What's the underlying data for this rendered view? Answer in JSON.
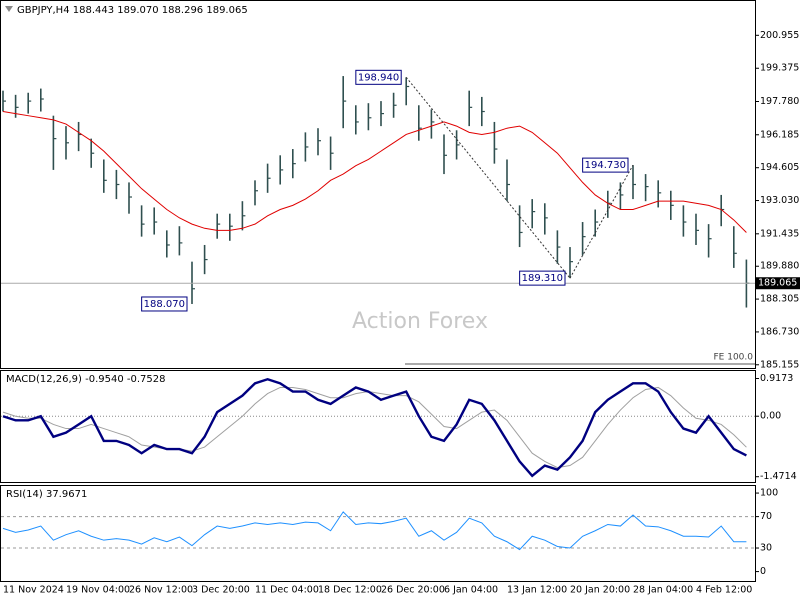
{
  "chart_data": [
    {
      "type": "ohlc",
      "title": "GBPJPY,H4  188.443 189.070 188.296 189.065",
      "watermark": "Action Forex",
      "fe_label": "FE 100.0",
      "categories": [
        "11 Nov 2024",
        null,
        null,
        null,
        null,
        "19 Nov 04:00",
        null,
        null,
        null,
        null,
        "26 Nov 12:00",
        null,
        null,
        null,
        null,
        "3 Dec 20:00",
        null,
        null,
        null,
        null,
        "11 Dec 04:00",
        null,
        null,
        null,
        null,
        "18 Dec 12:00",
        null,
        null,
        null,
        null,
        "26 Dec 20:00",
        null,
        null,
        null,
        null,
        "6 Jan 04:00",
        null,
        null,
        null,
        null,
        "13 Jan 12:00",
        null,
        null,
        null,
        null,
        "20 Jan 20:00",
        null,
        null,
        null,
        null,
        "28 Jan 04:00",
        null,
        null,
        null,
        null,
        "4 Feb 12:00",
        null,
        null,
        null,
        null
      ],
      "color": "#2f4f4f",
      "high": [
        198.3,
        198.1,
        198.2,
        198.4,
        197.1,
        196.6,
        196.8,
        196.0,
        195.0,
        194.5,
        193.9,
        192.8,
        192.7,
        191.6,
        191.8,
        190.1,
        190.9,
        192.4,
        192.4,
        193.0,
        194.0,
        194.8,
        195.2,
        195.5,
        196.3,
        196.5,
        196.1,
        199.0,
        197.6,
        197.7,
        197.8,
        198.2,
        198.94,
        197.6,
        197.4,
        196.2,
        196.4,
        198.3,
        198.0,
        196.8,
        195.0,
        192.8,
        193.1,
        192.9,
        191.6,
        190.8,
        192.0,
        192.6,
        193.5,
        193.9,
        194.73,
        194.3,
        194.0,
        193.5,
        192.8,
        192.4,
        191.9,
        193.3,
        191.8,
        190.2
      ],
      "low": [
        197.3,
        197.0,
        197.2,
        197.3,
        194.5,
        195.0,
        195.4,
        194.6,
        193.4,
        193.1,
        192.4,
        191.3,
        191.4,
        190.3,
        190.4,
        188.07,
        189.5,
        191.2,
        191.1,
        191.6,
        192.8,
        193.4,
        193.8,
        194.1,
        194.9,
        195.2,
        194.5,
        196.5,
        196.2,
        196.4,
        196.6,
        197.0,
        197.6,
        195.9,
        196.0,
        194.3,
        195.0,
        196.6,
        196.6,
        194.8,
        193.0,
        190.8,
        191.7,
        191.4,
        190.0,
        189.31,
        190.4,
        191.3,
        192.2,
        192.6,
        193.1,
        193.0,
        192.7,
        192.1,
        191.3,
        190.9,
        190.3,
        191.8,
        189.8,
        187.9
      ],
      "close": [
        197.8,
        197.5,
        197.8,
        197.9,
        196.0,
        195.8,
        196.2,
        195.3,
        194.0,
        193.8,
        193.2,
        191.9,
        192.0,
        190.9,
        191.0,
        188.8,
        190.2,
        191.9,
        191.8,
        192.3,
        193.5,
        194.1,
        194.5,
        194.8,
        195.6,
        195.9,
        195.3,
        197.8,
        196.8,
        197.0,
        197.2,
        197.6,
        198.5,
        196.5,
        196.8,
        195.2,
        195.7,
        197.5,
        197.3,
        195.5,
        193.8,
        191.5,
        192.5,
        192.2,
        190.8,
        190.1,
        191.3,
        192.0,
        192.9,
        193.3,
        193.8,
        193.7,
        193.4,
        192.8,
        192.0,
        191.6,
        191.2,
        192.6,
        190.5,
        189.065
      ],
      "ma": {
        "color": "#e00000",
        "values": [
          197.3,
          197.2,
          197.1,
          197.0,
          196.9,
          196.7,
          196.3,
          195.9,
          195.4,
          194.8,
          194.2,
          193.6,
          193.1,
          192.6,
          192.2,
          191.9,
          191.7,
          191.6,
          191.6,
          191.7,
          191.9,
          192.3,
          192.6,
          192.8,
          193.1,
          193.5,
          194.0,
          194.3,
          194.7,
          195.0,
          195.4,
          195.8,
          196.2,
          196.4,
          196.6,
          196.8,
          196.6,
          196.3,
          196.2,
          196.3,
          196.5,
          196.6,
          196.3,
          195.8,
          195.3,
          194.6,
          193.9,
          193.3,
          192.9,
          192.6,
          192.6,
          192.8,
          193.0,
          193.0,
          193.0,
          192.9,
          192.8,
          192.6,
          192.1,
          191.5
        ]
      },
      "annotations": [
        {
          "value": 198.94,
          "label": "198.940"
        },
        {
          "value": 189.31,
          "label": "189.310"
        },
        {
          "value": 194.73,
          "label": "194.730"
        },
        {
          "value": 188.07,
          "label": "188.070"
        }
      ],
      "ylim": [
        185.0,
        202.6
      ],
      "yticks": [
        200.955,
        199.375,
        {
          "value": 197.78,
          "label": "197.780"
        },
        196.185,
        194.605,
        {
          "value": 193.03,
          "label": "193.030"
        },
        191.435,
        {
          "value": 189.88,
          "label": "189.880"
        },
        188.305,
        {
          "value": 186.73,
          "label": "186.730"
        },
        185.155
      ]
    },
    {
      "type": "macd",
      "title": "MACD(12,26,9) -0.9540 -0.7528",
      "macd": {
        "color": "#000080",
        "values": [
          0.0,
          -0.1,
          -0.1,
          0.0,
          -0.5,
          -0.4,
          -0.2,
          0.0,
          -0.6,
          -0.6,
          -0.7,
          -0.9,
          -0.7,
          -0.8,
          -0.8,
          -0.9,
          -0.5,
          0.1,
          0.3,
          0.5,
          0.8,
          0.9,
          0.8,
          0.6,
          0.6,
          0.4,
          0.3,
          0.5,
          0.7,
          0.6,
          0.4,
          0.5,
          0.6,
          0.0,
          -0.5,
          -0.6,
          -0.2,
          0.4,
          0.3,
          -0.1,
          -0.6,
          -1.1,
          -1.45,
          -1.2,
          -1.3,
          -1.0,
          -0.6,
          0.1,
          0.4,
          0.6,
          0.8,
          0.8,
          0.6,
          0.1,
          -0.3,
          -0.4,
          0.0,
          -0.4,
          -0.8,
          -0.954
        ]
      },
      "signal": {
        "color": "#a0a0a0",
        "values": [
          0.1,
          0.0,
          -0.05,
          -0.05,
          -0.2,
          -0.3,
          -0.3,
          -0.2,
          -0.3,
          -0.4,
          -0.5,
          -0.7,
          -0.75,
          -0.8,
          -0.8,
          -0.85,
          -0.75,
          -0.5,
          -0.25,
          0.0,
          0.3,
          0.55,
          0.7,
          0.7,
          0.65,
          0.55,
          0.45,
          0.45,
          0.55,
          0.6,
          0.55,
          0.5,
          0.5,
          0.35,
          0.05,
          -0.25,
          -0.3,
          -0.1,
          0.1,
          0.15,
          -0.1,
          -0.5,
          -0.9,
          -1.1,
          -1.25,
          -1.2,
          -1.0,
          -0.6,
          -0.2,
          0.15,
          0.45,
          0.65,
          0.7,
          0.5,
          0.2,
          -0.05,
          -0.1,
          -0.2,
          -0.45,
          -0.7528
        ]
      },
      "ylim": [
        -1.6,
        1.1
      ],
      "yticks": [
        0.9173,
        {
          "value": 0,
          "label": "0.00"
        },
        -1.4714
      ]
    },
    {
      "type": "rsi",
      "title": "RSI(14) 37.9671",
      "color": "#1e90ff",
      "values": [
        55,
        50,
        53,
        58,
        40,
        47,
        52,
        45,
        40,
        42,
        40,
        35,
        43,
        38,
        44,
        33,
        47,
        58,
        55,
        58,
        62,
        60,
        62,
        60,
        63,
        62,
        52,
        76,
        60,
        62,
        61,
        64,
        68,
        45,
        52,
        40,
        50,
        68,
        62,
        45,
        38,
        28,
        45,
        40,
        32,
        30,
        45,
        52,
        60,
        58,
        72,
        58,
        57,
        52,
        45,
        45,
        44,
        58,
        38,
        37.9671
      ],
      "levels": [
        70,
        30
      ],
      "ylim": [
        -12,
        109
      ],
      "yticks": [
        100,
        70,
        30,
        0
      ]
    }
  ]
}
